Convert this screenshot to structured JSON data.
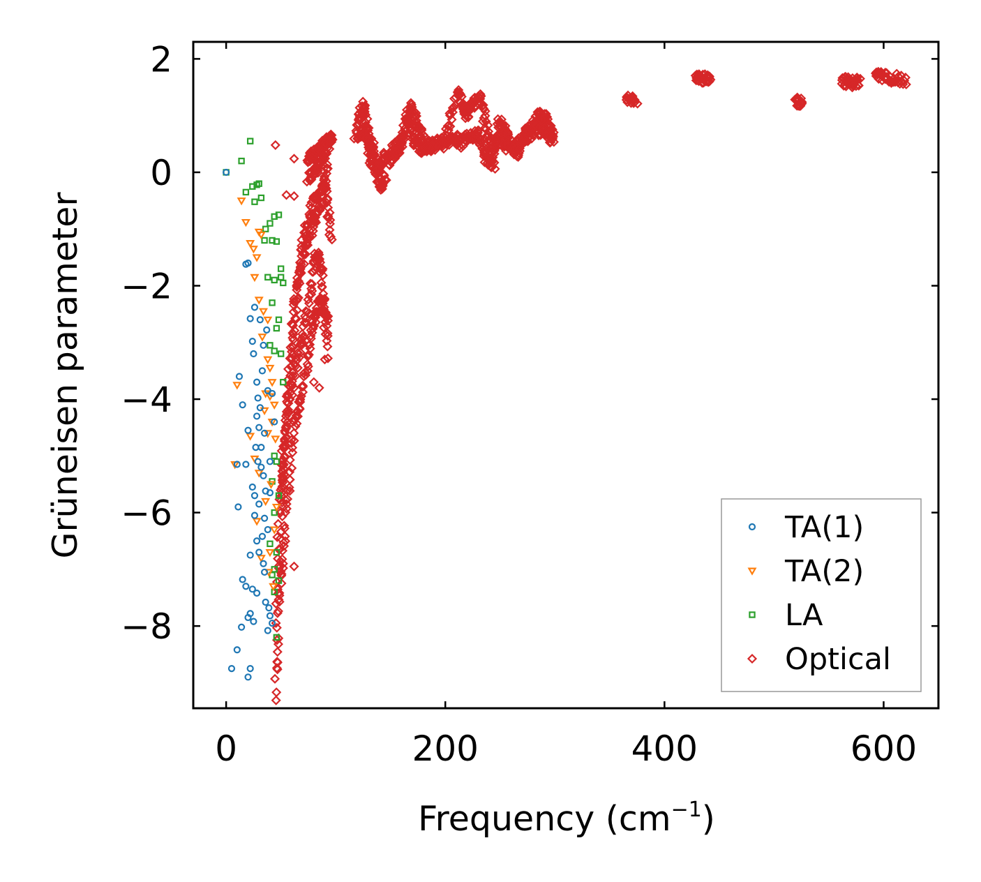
{
  "chart_data": {
    "type": "scatter",
    "xlabel": "Frequency (cm",
    "xlabel_sup": "−1",
    "xlabel_close": ")",
    "ylabel": "Grüneisen parameter",
    "xlim": [
      -30,
      650
    ],
    "ylim": [
      -9.45,
      2.3
    ],
    "xticks": [
      0,
      200,
      400,
      600
    ],
    "xtick_labels": [
      "0",
      "200",
      "400",
      "600"
    ],
    "yticks": [
      2,
      0,
      -2,
      -4,
      -6,
      -8
    ],
    "ytick_labels": [
      "2",
      "0",
      "−2",
      "−4",
      "−6",
      "−8"
    ],
    "grid": false,
    "legend_position": "lower-right",
    "series": [
      {
        "name": "TA(1)",
        "marker": "circle",
        "color": "#1f77b4",
        "points": [
          [
            0,
            0
          ],
          [
            12,
            -3.6
          ],
          [
            15,
            -4.1
          ],
          [
            18,
            -1.62
          ],
          [
            20,
            -1.6
          ],
          [
            22,
            -2.58
          ],
          [
            24,
            -2.98
          ],
          [
            26,
            -2.38
          ],
          [
            25,
            -3.2
          ],
          [
            28,
            -3.7
          ],
          [
            29,
            -3.98
          ],
          [
            30,
            -4.5
          ],
          [
            31,
            -4.15
          ],
          [
            33,
            -3.5
          ],
          [
            35,
            -4.6
          ],
          [
            27,
            -4.85
          ],
          [
            29,
            -5.1
          ],
          [
            32,
            -5.2
          ],
          [
            24,
            -5.55
          ],
          [
            26,
            -5.7
          ],
          [
            34,
            -5.35
          ],
          [
            36,
            -5.62
          ],
          [
            40,
            -5.65
          ],
          [
            18,
            -5.15
          ],
          [
            10,
            -5.15
          ],
          [
            11,
            -5.9
          ],
          [
            35,
            -6.1
          ],
          [
            38,
            -6.3
          ],
          [
            33,
            -6.42
          ],
          [
            28,
            -6.5
          ],
          [
            30,
            -6.7
          ],
          [
            22,
            -6.75
          ],
          [
            34,
            -6.9
          ],
          [
            35,
            -7.05
          ],
          [
            15,
            -7.18
          ],
          [
            18,
            -7.3
          ],
          [
            24,
            -7.35
          ],
          [
            28,
            -7.42
          ],
          [
            36,
            -7.58
          ],
          [
            39,
            -7.68
          ],
          [
            40,
            -7.82
          ],
          [
            42,
            -7.95
          ],
          [
            38,
            -8.08
          ],
          [
            20,
            -7.85
          ],
          [
            22,
            -7.78
          ],
          [
            25,
            -7.92
          ],
          [
            14,
            -8.02
          ],
          [
            10,
            -8.42
          ],
          [
            5,
            -8.75
          ],
          [
            22,
            -8.75
          ],
          [
            20,
            -8.9
          ],
          [
            30,
            -5.85
          ],
          [
            32,
            -4.85
          ],
          [
            28,
            -4.3
          ],
          [
            38,
            -3.85
          ],
          [
            34,
            -3.05
          ],
          [
            37,
            -2.78
          ],
          [
            31,
            -2.6
          ],
          [
            42,
            -3.9
          ],
          [
            44,
            -4.4
          ],
          [
            40,
            -5.1
          ],
          [
            26,
            -6.05
          ],
          [
            20,
            -4.55
          ]
        ]
      },
      {
        "name": "TA(2)",
        "marker": "triangle-down",
        "color": "#ff7f0e",
        "points": [
          [
            14,
            -0.5
          ],
          [
            18,
            -0.88
          ],
          [
            22,
            -1.25
          ],
          [
            25,
            -1.35
          ],
          [
            28,
            -1.5
          ],
          [
            30,
            -1.05
          ],
          [
            32,
            -1.1
          ],
          [
            26,
            -1.85
          ],
          [
            30,
            -2.25
          ],
          [
            34,
            -2.45
          ],
          [
            38,
            -2.6
          ],
          [
            33,
            -2.9
          ],
          [
            38,
            -3.3
          ],
          [
            40,
            -3.45
          ],
          [
            42,
            -3.7
          ],
          [
            36,
            -3.9
          ],
          [
            44,
            -4.1
          ],
          [
            42,
            -4.4
          ],
          [
            38,
            -4.6
          ],
          [
            22,
            -4.65
          ],
          [
            10,
            -3.75
          ],
          [
            8,
            -5.15
          ],
          [
            26,
            -5.05
          ],
          [
            30,
            -5.3
          ],
          [
            36,
            -5.8
          ],
          [
            44,
            -6.3
          ],
          [
            40,
            -6.7
          ],
          [
            46,
            -5.9
          ],
          [
            32,
            -6.8
          ],
          [
            28,
            -6.15
          ],
          [
            35,
            -4.2
          ],
          [
            45,
            -4.7
          ],
          [
            41,
            -5.5
          ],
          [
            39,
            -7.05
          ],
          [
            43,
            -7.3
          ],
          [
            40,
            -3.95
          ]
        ]
      },
      {
        "name": "LA",
        "marker": "square",
        "color": "#2ca02c",
        "points": [
          [
            0,
            0
          ],
          [
            22,
            0.55
          ],
          [
            14,
            0.2
          ],
          [
            18,
            -0.35
          ],
          [
            24,
            -0.25
          ],
          [
            28,
            -0.22
          ],
          [
            30,
            -0.2
          ],
          [
            32,
            -0.45
          ],
          [
            26,
            -0.52
          ],
          [
            36,
            -1.0
          ],
          [
            40,
            -0.9
          ],
          [
            44,
            -0.78
          ],
          [
            48,
            -0.75
          ],
          [
            42,
            -1.2
          ],
          [
            46,
            -1.22
          ],
          [
            38,
            -1.85
          ],
          [
            44,
            -1.9
          ],
          [
            50,
            -1.85
          ],
          [
            52,
            -1.95
          ],
          [
            42,
            -2.3
          ],
          [
            48,
            -2.6
          ],
          [
            46,
            -2.75
          ],
          [
            40,
            -3.05
          ],
          [
            44,
            -3.15
          ],
          [
            50,
            -3.2
          ],
          [
            52,
            -3.7
          ],
          [
            44,
            -5.0
          ],
          [
            46,
            -5.1
          ],
          [
            42,
            -5.45
          ],
          [
            48,
            -5.7
          ],
          [
            44,
            -6.0
          ],
          [
            40,
            -6.55
          ],
          [
            46,
            -6.7
          ],
          [
            44,
            -7.0
          ],
          [
            42,
            -7.1
          ],
          [
            48,
            -7.2
          ],
          [
            44,
            -7.4
          ],
          [
            46,
            -8.2
          ],
          [
            35,
            -1.2
          ],
          [
            50,
            -1.7
          ]
        ]
      },
      {
        "name": "Optical",
        "marker": "diamond",
        "color": "#d62728",
        "points": [
          [
            45,
            0.48
          ],
          [
            62,
            0.24
          ],
          [
            55,
            -0.4
          ],
          [
            62,
            -0.42
          ],
          [
            62,
            -3.8
          ],
          [
            85,
            -3.8
          ],
          [
            62,
            -6.95
          ],
          [
            90,
            -3.3
          ],
          [
            80,
            -3.7
          ],
          [
            52,
            -6.9
          ]
        ],
        "segments": [
          [
            [
              45,
              -9.6
            ],
            [
              48,
              -6.0
            ],
            [
              55,
              -4.5
            ],
            [
              62,
              -2.4
            ],
            [
              70,
              -1.2
            ],
            [
              80,
              -0.5
            ],
            [
              90,
              -0.2
            ],
            [
              96,
              -1.2
            ]
          ],
          [
            [
              46,
              -8.8
            ],
            [
              52,
              -5.0
            ],
            [
              60,
              -3.0
            ],
            [
              68,
              -1.7
            ],
            [
              78,
              -1.0
            ],
            [
              86,
              -0.6
            ],
            [
              92,
              0.1
            ]
          ],
          [
            [
              48,
              -7.5
            ],
            [
              55,
              -6.0
            ],
            [
              62,
              -4.5
            ],
            [
              70,
              -3.8
            ],
            [
              78,
              -2.8
            ],
            [
              86,
              -2.2
            ],
            [
              92,
              -2.6
            ]
          ],
          [
            [
              50,
              -5.6
            ],
            [
              58,
              -4.0
            ],
            [
              66,
              -3.2
            ],
            [
              74,
              -2.5
            ],
            [
              82,
              -1.4
            ],
            [
              88,
              -1.8
            ],
            [
              92,
              -3.2
            ]
          ],
          [
            [
              74,
              0.25
            ],
            [
              80,
              0.3
            ],
            [
              86,
              0.42
            ],
            [
              92,
              0.55
            ],
            [
              98,
              0.6
            ]
          ],
          [
            [
              75,
              -0.1
            ],
            [
              82,
              0.05
            ],
            [
              88,
              0.25
            ],
            [
              94,
              0.5
            ]
          ],
          [
            [
              120,
              0.85
            ],
            [
              125,
              1.2
            ],
            [
              130,
              0.6
            ],
            [
              135,
              0.4
            ],
            [
              140,
              -0.3
            ],
            [
              145,
              -0.1
            ]
          ],
          [
            [
              118,
              0.65
            ],
            [
              126,
              0.75
            ],
            [
              132,
              0.2
            ],
            [
              138,
              0.0
            ],
            [
              146,
              0.35
            ]
          ],
          [
            [
              150,
              0.4
            ],
            [
              160,
              0.55
            ],
            [
              168,
              1.2
            ],
            [
              175,
              0.8
            ],
            [
              182,
              0.45
            ],
            [
              190,
              0.5
            ],
            [
              200,
              0.6
            ],
            [
              210,
              1.35
            ]
          ],
          [
            [
              148,
              0.2
            ],
            [
              158,
              0.35
            ],
            [
              166,
              0.9
            ],
            [
              172,
              0.5
            ],
            [
              180,
              0.4
            ],
            [
              192,
              0.45
            ],
            [
              205,
              0.55
            ],
            [
              215,
              0.65
            ]
          ],
          [
            [
              212,
              1.5
            ],
            [
              218,
              1.0
            ],
            [
              225,
              1.2
            ],
            [
              232,
              1.3
            ],
            [
              240,
              0.6
            ],
            [
              245,
              0.3
            ]
          ],
          [
            [
              210,
              0.45
            ],
            [
              220,
              0.6
            ],
            [
              230,
              0.7
            ],
            [
              238,
              0.2
            ],
            [
              244,
              0.15
            ]
          ],
          [
            [
              248,
              0.9
            ],
            [
              255,
              0.7
            ],
            [
              262,
              0.4
            ],
            [
              270,
              0.6
            ],
            [
              278,
              0.8
            ],
            [
              285,
              1.0
            ],
            [
              292,
              0.95
            ],
            [
              298,
              0.6
            ]
          ],
          [
            [
              246,
              0.6
            ],
            [
              256,
              0.45
            ],
            [
              265,
              0.35
            ],
            [
              275,
              0.65
            ],
            [
              282,
              0.75
            ],
            [
              290,
              0.7
            ],
            [
              298,
              0.55
            ]
          ],
          [
            [
              365,
              1.28
            ],
            [
              374,
              1.3
            ]
          ],
          [
            [
              428,
              1.72
            ],
            [
              436,
              1.65
            ],
            [
              442,
              1.6
            ]
          ],
          [
            [
              520,
              1.25
            ],
            [
              525,
              1.25
            ]
          ],
          [
            [
              562,
              1.62
            ],
            [
              570,
              1.58
            ],
            [
              578,
              1.6
            ]
          ],
          [
            [
              592,
              1.7
            ],
            [
              605,
              1.68
            ],
            [
              620,
              1.6
            ]
          ]
        ]
      }
    ]
  }
}
